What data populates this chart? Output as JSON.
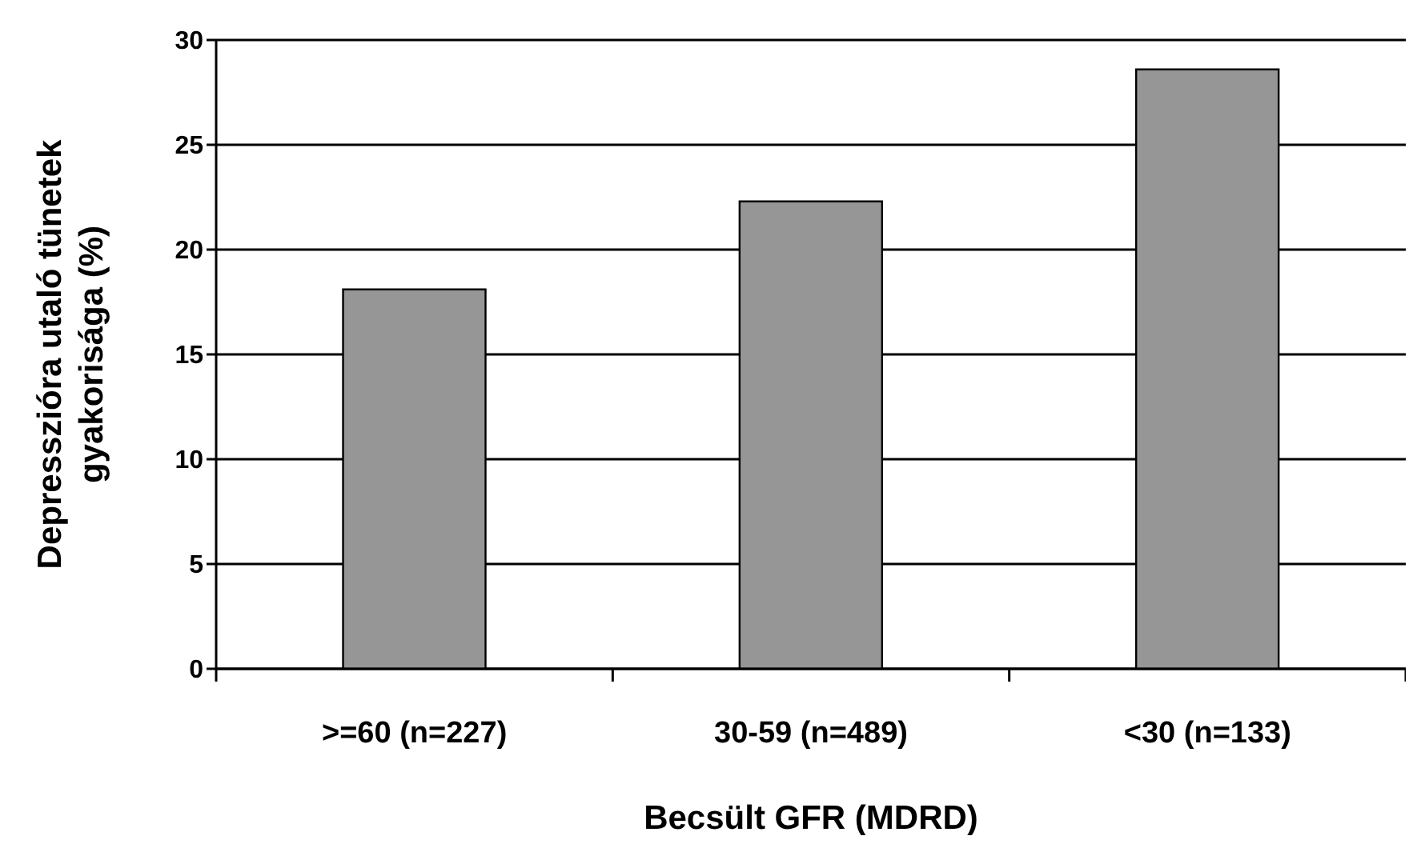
{
  "chart_data": {
    "type": "bar",
    "xlabel": "Becsült GFR (MDRD)",
    "ylabel": "Depresszióra utaló tünetek gyakorisága (%)",
    "categories": [
      ">=60 (n=227)",
      "30-59 (n=489)",
      "<30 (n=133)"
    ],
    "values": [
      18.1,
      22.3,
      28.6
    ],
    "color": "#969696",
    "ylim": [
      0,
      30
    ],
    "yticks": [
      0,
      5,
      10,
      15,
      20,
      25,
      30
    ],
    "grid": "y"
  }
}
